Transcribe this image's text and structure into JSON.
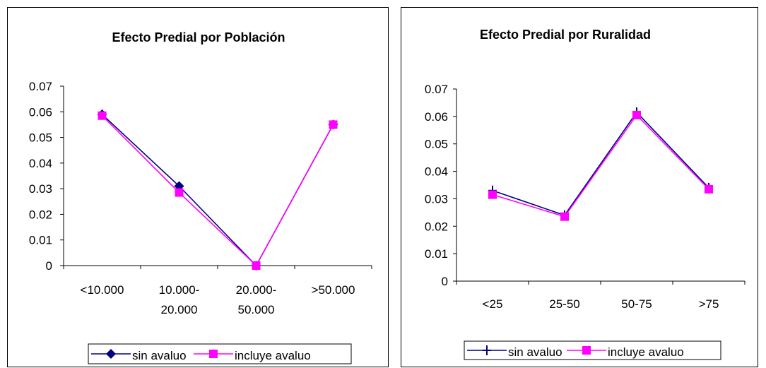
{
  "chart_data": [
    {
      "type": "line",
      "title": "Efecto Predial por Población",
      "categories": [
        "<10.000",
        "10.000-20.000",
        "20.000-50.000",
        ">50.000"
      ],
      "category_lines": [
        [
          "<10.000"
        ],
        [
          "10.000-",
          "20.000"
        ],
        [
          "20.000-",
          "50.000"
        ],
        [
          ">50.000"
        ]
      ],
      "ylim": [
        0,
        0.07
      ],
      "yticks": [
        "0",
        "0.01",
        "0.02",
        "0.03",
        "0.04",
        "0.05",
        "0.06",
        "0.07"
      ],
      "grid": false,
      "legend_position": "bottom",
      "series": [
        {
          "name": "sin avaluo",
          "values": [
            0.059,
            0.031,
            0.0,
            0.055
          ],
          "color": "#000080",
          "marker": "diamond"
        },
        {
          "name": "incluye avaluo",
          "values": [
            0.0585,
            0.0285,
            0.0,
            0.055
          ],
          "color": "#ff00ff",
          "marker": "square"
        }
      ]
    },
    {
      "type": "line",
      "title": "Efecto Predial por Ruralidad",
      "categories": [
        "<25",
        "25-50",
        "50-75",
        ">75"
      ],
      "category_lines": [
        [
          "<25"
        ],
        [
          "25-50"
        ],
        [
          "50-75"
        ],
        [
          ">75"
        ]
      ],
      "ylim": [
        0,
        0.07
      ],
      "yticks": [
        "0",
        "0.01",
        "0.02",
        "0.03",
        "0.04",
        "0.05",
        "0.06",
        "0.07"
      ],
      "grid": false,
      "legend_position": "bottom",
      "series": [
        {
          "name": "sin avaluo",
          "values": [
            0.033,
            0.024,
            0.0615,
            0.034
          ],
          "color": "#000080",
          "marker": "plus"
        },
        {
          "name": "incluye avaluo",
          "values": [
            0.0315,
            0.0235,
            0.0605,
            0.0335
          ],
          "color": "#ff00ff",
          "marker": "square"
        }
      ]
    }
  ]
}
